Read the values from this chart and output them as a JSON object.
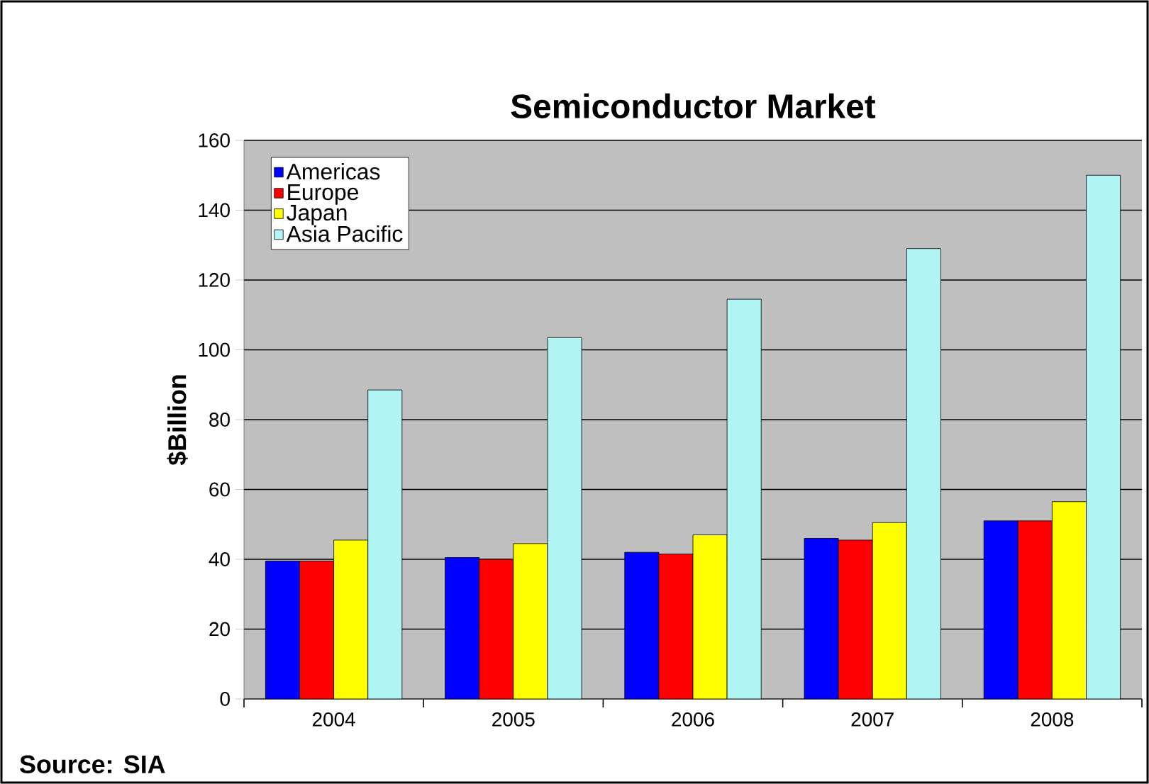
{
  "chart_data": {
    "type": "bar",
    "title": "Semiconductor Market",
    "ylabel": "$Billion",
    "categories": [
      "2004",
      "2005",
      "2006",
      "2007",
      "2008"
    ],
    "series": [
      {
        "name": "Americas",
        "color": "#0000ff",
        "values": [
          39.5,
          40.5,
          42,
          46,
          51
        ]
      },
      {
        "name": "Europe",
        "color": "#ff0000",
        "values": [
          39.5,
          40,
          41.5,
          45.5,
          51
        ]
      },
      {
        "name": "Japan",
        "color": "#ffff00",
        "values": [
          45.5,
          44.5,
          47,
          50.5,
          56.5
        ]
      },
      {
        "name": "Asia Pacific",
        "color": "#b0f4f4",
        "values": [
          88.5,
          103.5,
          114.5,
          129,
          150
        ]
      }
    ],
    "ylim": [
      0,
      160
    ],
    "yticks": [
      0,
      20,
      40,
      60,
      80,
      100,
      120,
      140,
      160
    ],
    "grid": "y",
    "legend": "top left",
    "annotations": [
      "Source:  SIA"
    ]
  }
}
